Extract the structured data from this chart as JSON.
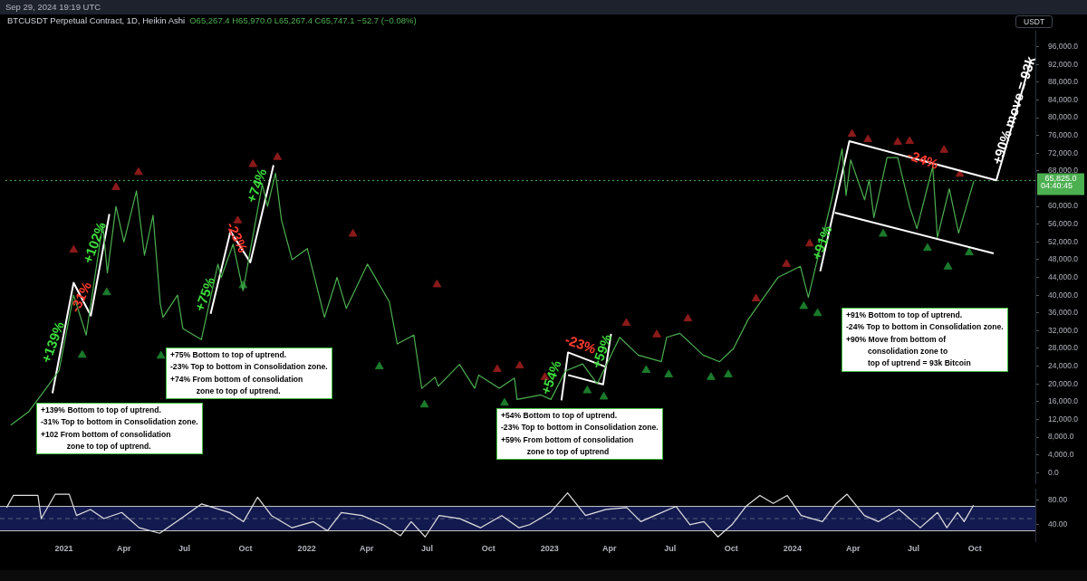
{
  "chart_data": [
    {
      "type": "line",
      "title": "BTCUSDT Perpetual Contract, 1D, Heikin Ashi",
      "subtitle": "O65,267.4 H65,970.0 L65,267.4 C65,747.1 −52.7 (−0.08%)",
      "xlim": [
        "2020-09-27",
        "2024-12-31"
      ],
      "ylim": [
        -2400,
        99600
      ],
      "yticks": [
        {
          "value": 0,
          "label": "0.0"
        },
        {
          "value": 4000,
          "label": "4,000.0"
        },
        {
          "value": 8000,
          "label": "8,000.0"
        },
        {
          "value": 12000,
          "label": "12,000.0"
        },
        {
          "value": 16000,
          "label": "16,000.0"
        },
        {
          "value": 20000,
          "label": "20,000.0"
        },
        {
          "value": 24000,
          "label": "24,000.0"
        },
        {
          "value": 28000,
          "label": "28,000.0"
        },
        {
          "value": 32000,
          "label": "32,000.0"
        },
        {
          "value": 36000,
          "label": "36,000.0"
        },
        {
          "value": 40000,
          "label": "40,000.0"
        },
        {
          "value": 44000,
          "label": "44,000.0"
        },
        {
          "value": 48000,
          "label": "48,000.0"
        },
        {
          "value": 52000,
          "label": "52,000.0"
        },
        {
          "value": 56000,
          "label": "56,000.0"
        },
        {
          "value": 60000,
          "label": "60,000.0"
        },
        {
          "value": 68000,
          "label": "68,000.0"
        },
        {
          "value": 72000,
          "label": "72,000.0"
        },
        {
          "value": 76000,
          "label": "76,000.0"
        },
        {
          "value": 80000,
          "label": "80,000.0"
        },
        {
          "value": 84000,
          "label": "84,000.0"
        },
        {
          "value": 88000,
          "label": "88,000.0"
        },
        {
          "value": 92000,
          "label": "92,000.0"
        },
        {
          "value": 96000,
          "label": "96,000.0"
        }
      ],
      "tick_labels": "y",
      "series": [
        {
          "color": "#4caf50",
          "x": [
            "2020-10-05",
            "2020-11-01",
            "2020-11-25",
            "2020-12-17",
            "2021-01-08",
            "2021-01-27",
            "2021-02-21",
            "2021-02-28",
            "2021-03-13",
            "2021-03-25",
            "2021-04-13",
            "2021-04-25",
            "2021-05-08",
            "2021-05-19",
            "2021-05-23",
            "2021-06-14",
            "2021-06-22",
            "2021-07-20",
            "2021-08-14",
            "2021-08-19",
            "2021-09-06",
            "2021-09-21",
            "2021-10-20",
            "2021-10-28",
            "2021-11-09",
            "2021-11-18",
            "2021-12-04",
            "2021-12-27",
            "2022-01-22",
            "2022-02-10",
            "2022-02-24",
            "2022-03-28",
            "2022-04-30",
            "2022-05-12",
            "2022-06-06",
            "2022-06-18",
            "2022-07-08",
            "2022-07-13",
            "2022-08-14",
            "2022-09-06",
            "2022-09-12",
            "2022-10-13",
            "2022-11-05",
            "2022-11-09",
            "2022-12-15",
            "2022-12-30",
            "2023-01-21",
            "2023-02-16",
            "2023-03-10",
            "2023-04-13",
            "2023-05-11",
            "2023-06-15",
            "2023-06-23",
            "2023-07-13",
            "2023-08-17",
            "2023-09-11",
            "2023-10-02",
            "2023-10-24",
            "2023-12-08",
            "2024-01-11",
            "2024-01-23",
            "2024-02-28",
            "2024-03-14",
            "2024-03-20",
            "2024-03-27",
            "2024-04-17",
            "2024-04-24",
            "2024-05-01",
            "2024-05-21",
            "2024-06-06",
            "2024-06-24",
            "2024-07-05",
            "2024-07-29",
            "2024-08-05",
            "2024-08-23",
            "2024-09-06",
            "2024-09-29"
          ],
          "values": [
            10700,
            13700,
            18500,
            23000,
            40000,
            31000,
            56000,
            45000,
            60000,
            52000,
            63500,
            49000,
            58000,
            38000,
            35000,
            40000,
            32500,
            30000,
            47000,
            44000,
            51500,
            41000,
            65000,
            60000,
            67500,
            57000,
            48000,
            50500,
            35000,
            44000,
            37000,
            47000,
            38500,
            29000,
            31000,
            19000,
            21500,
            19500,
            24400,
            19000,
            22000,
            19000,
            21300,
            16500,
            17500,
            16500,
            22900,
            24500,
            20000,
            30500,
            26500,
            25000,
            30500,
            31400,
            26500,
            25000,
            28000,
            34500,
            44000,
            46500,
            39500,
            62000,
            73000,
            62500,
            70500,
            61500,
            66000,
            57500,
            71000,
            71000,
            60000,
            55000,
            69000,
            53000,
            64000,
            54000,
            65700
          ]
        },
        {
          "type": "line",
          "color": "#ffffff",
          "x": [
            "2020-12-07",
            "2021-01-08",
            "2021-02-03",
            "2021-03-03"
          ],
          "values": [
            17900,
            42800,
            35400,
            58300
          ]
        },
        {
          "type": "line",
          "color": "#ffffff",
          "x": [
            "2021-08-03",
            "2021-09-02",
            "2021-10-02",
            "2021-11-06"
          ],
          "values": [
            35800,
            54400,
            47400,
            69300
          ]
        },
        {
          "type": "line",
          "color": "#ffffff",
          "x": [
            "2023-01-15",
            "2023-01-25",
            "2023-03-22"
          ],
          "values": [
            16300,
            27100,
            23900
          ]
        },
        {
          "type": "line",
          "color": "#ffffff",
          "x": [
            "2023-01-25",
            "2023-03-19",
            "2023-03-31"
          ],
          "values": [
            22000,
            19900,
            31300
          ]
        },
        {
          "type": "line",
          "color": "#ffffff",
          "x": [
            "2024-02-10",
            "2024-03-25",
            "2024-11-02",
            "2024-12-24"
          ],
          "values": [
            45400,
            74700,
            65900,
            92800
          ]
        },
        {
          "type": "line",
          "color": "#ffffff",
          "x": [
            "2024-03-03",
            "2024-10-29"
          ],
          "values": [
            58600,
            49400
          ]
        },
        {
          "type": "scatter",
          "marker": "triangle",
          "color": "#8b1a1a",
          "x": [
            "2021-01-08",
            "2021-03-13",
            "2021-04-16",
            "2021-09-13",
            "2021-10-06",
            "2021-11-12",
            "2022-03-06",
            "2022-07-11",
            "2022-10-10",
            "2022-11-13",
            "2022-12-21",
            "2023-04-23",
            "2023-06-08",
            "2023-07-25",
            "2023-11-05",
            "2023-12-21",
            "2024-01-25",
            "2024-03-29",
            "2024-04-22",
            "2024-06-06",
            "2024-06-24",
            "2024-08-15",
            "2024-09-08"
          ],
          "values": [
            50200,
            64300,
            67700,
            56800,
            69500,
            71100,
            53800,
            42400,
            23300,
            24100,
            21500,
            33700,
            31100,
            34700,
            39200,
            47000,
            51600,
            76300,
            75100,
            74500,
            74700,
            72700,
            67300
          ]
        },
        {
          "type": "scatter",
          "marker": "triangle",
          "color": "#1b7a2b",
          "x": [
            "2021-01-21",
            "2021-02-27",
            "2021-05-20",
            "2021-09-21",
            "2022-04-15",
            "2022-06-22",
            "2022-10-21",
            "2023-02-23",
            "2023-03-20",
            "2023-05-23",
            "2023-06-26",
            "2023-08-29",
            "2023-09-24",
            "2024-01-16",
            "2024-02-06",
            "2024-05-15",
            "2024-07-21",
            "2024-08-21",
            "2024-09-22"
          ],
          "values": [
            26500,
            40600,
            26300,
            42200,
            23900,
            15300,
            15700,
            18500,
            17100,
            23100,
            22100,
            21500,
            22100,
            37500,
            35900,
            53800,
            50600,
            46400,
            49600
          ]
        }
      ],
      "ref_lines": [
        {
          "axis": "y",
          "value": 65825,
          "label": "65,825.0",
          "color": "#4caf50",
          "line_style": "dotted"
        }
      ],
      "annotations": [
        "Sep 29, 2024 19:19 UTC",
        "USDT",
        "04:40:45",
        "+139% Bottom to top of uptrend.\n-31% Top to bottom in Consolidation zone.\n+102 From bottom of consolidation\n            zone to top of uptrend.",
        "+75% Bottom to top of uptrend.\n-23% Top to bottom in Consolidation zone.\n+74% From bottom of consolidation\n            zone to top of uptrend.",
        "+54% Bottom to top of uptrend.\n-23% Top to bottom in Consolidation zone.\n+59% From bottom of consolidation\n            zone to top of uptrend",
        "+91% Bottom to top of uptrend.\n-24% Top to bottom in Consolidation zone.\n+90% Move from bottom of\n          consolidation zone to\n          top of uptrend = 93k Bitcoin",
        "+139%",
        "-31%",
        "+102%",
        "+75%",
        "-23%",
        "+74%",
        "+54%",
        "-23%",
        "+59%",
        "+91%",
        "-24%",
        "+90% move = 93k"
      ]
    },
    {
      "type": "line",
      "xlim": [
        "2020-09-27",
        "2024-12-31"
      ],
      "ylim": [
        13,
        99
      ],
      "xticks": [
        {
          "value": "2021-01-01",
          "label": "2021"
        },
        {
          "value": "2021-04-01",
          "label": "Apr"
        },
        {
          "value": "2021-07-01",
          "label": "Jul"
        },
        {
          "value": "2021-10-01",
          "label": "Oct"
        },
        {
          "value": "2022-01-01",
          "label": "2022"
        },
        {
          "value": "2022-04-01",
          "label": "Apr"
        },
        {
          "value": "2022-07-01",
          "label": "Jul"
        },
        {
          "value": "2022-10-01",
          "label": "Oct"
        },
        {
          "value": "2023-01-01",
          "label": "2023"
        },
        {
          "value": "2023-04-01",
          "label": "Apr"
        },
        {
          "value": "2023-07-01",
          "label": "Jul"
        },
        {
          "value": "2023-10-01",
          "label": "Oct"
        },
        {
          "value": "2024-01-01",
          "label": "2024"
        },
        {
          "value": "2024-04-01",
          "label": "Apr"
        },
        {
          "value": "2024-07-01",
          "label": "Jul"
        },
        {
          "value": "2024-10-01",
          "label": "Oct"
        }
      ],
      "yticks": [
        {
          "value": 40,
          "label": "40.00"
        },
        {
          "value": 80,
          "label": "80.00"
        }
      ],
      "series": [
        {
          "color": "#e0e0e0",
          "x": [
            "2020-10-07",
            "2020-10-17",
            "2020-11-23",
            "2020-11-28",
            "2020-12-19",
            "2021-01-09",
            "2021-01-20",
            "2021-02-10",
            "2021-03-02",
            "2021-03-29",
            "2021-04-24",
            "2021-05-25",
            "2021-06-26",
            "2021-07-27",
            "2021-09-07",
            "2021-09-28",
            "2021-10-19",
            "2021-11-09",
            "2021-12-10",
            "2022-01-11",
            "2022-02-01",
            "2022-02-22",
            "2022-03-25",
            "2022-04-26",
            "2022-05-22",
            "2022-06-07",
            "2022-06-28",
            "2022-07-19",
            "2022-08-19",
            "2022-09-19",
            "2022-10-21",
            "2022-11-16",
            "2022-12-02",
            "2023-01-02",
            "2023-01-28",
            "2023-02-24",
            "2023-03-27",
            "2023-04-27",
            "2023-05-18",
            "2023-06-08",
            "2023-07-10",
            "2023-07-31",
            "2023-08-21",
            "2023-09-11",
            "2023-10-02",
            "2023-10-23",
            "2023-11-13",
            "2023-12-03",
            "2023-12-24",
            "2024-01-14",
            "2024-02-15",
            "2024-03-07",
            "2024-03-23",
            "2024-04-18",
            "2024-05-09",
            "2024-06-09",
            "2024-07-11",
            "2024-08-06",
            "2024-08-20",
            "2024-09-05",
            "2024-09-15",
            "2024-09-29"
          ],
          "values": [
            68,
            88,
            88,
            50,
            90,
            90,
            55,
            65,
            50,
            60,
            35,
            26,
            50,
            74,
            60,
            45,
            85,
            55,
            35,
            45,
            30,
            60,
            55,
            40,
            22,
            45,
            20,
            55,
            50,
            35,
            55,
            35,
            40,
            60,
            92,
            55,
            65,
            68,
            45,
            55,
            70,
            40,
            45,
            20,
            40,
            70,
            88,
            75,
            88,
            55,
            45,
            75,
            90,
            55,
            45,
            65,
            35,
            60,
            35,
            60,
            45,
            72
          ]
        }
      ],
      "bands": [
        {
          "axis": "y",
          "from": 30,
          "to": 70,
          "color": "#131a4f"
        }
      ],
      "ref_lines": [
        {
          "axis": "y",
          "value": 70,
          "color": "#c8c8c8"
        },
        {
          "axis": "y",
          "value": 30,
          "color": "#c8c8c8"
        },
        {
          "axis": "y",
          "value": 50,
          "color": "#5a6180",
          "line_style": "dashed"
        }
      ]
    }
  ]
}
